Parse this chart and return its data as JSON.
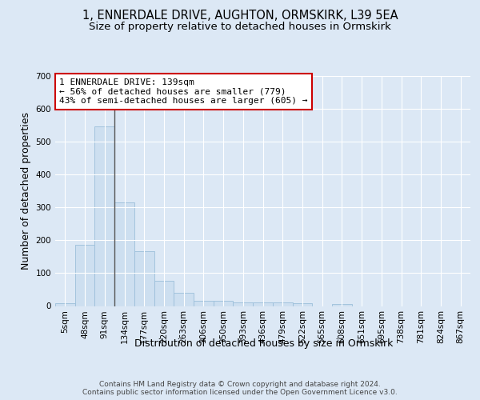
{
  "title_line1": "1, ENNERDALE DRIVE, AUGHTON, ORMSKIRK, L39 5EA",
  "title_line2": "Size of property relative to detached houses in Ormskirk",
  "xlabel": "Distribution of detached houses by size in Ormskirk",
  "ylabel": "Number of detached properties",
  "footnote": "Contains HM Land Registry data © Crown copyright and database right 2024.\nContains public sector information licensed under the Open Government Licence v3.0.",
  "bin_labels": [
    "5sqm",
    "48sqm",
    "91sqm",
    "134sqm",
    "177sqm",
    "220sqm",
    "263sqm",
    "306sqm",
    "350sqm",
    "393sqm",
    "436sqm",
    "479sqm",
    "522sqm",
    "565sqm",
    "608sqm",
    "651sqm",
    "695sqm",
    "738sqm",
    "781sqm",
    "824sqm",
    "867sqm"
  ],
  "bar_values": [
    8,
    186,
    547,
    315,
    168,
    77,
    40,
    16,
    16,
    11,
    12,
    12,
    8,
    0,
    7,
    0,
    0,
    0,
    0,
    0,
    0
  ],
  "bar_color": "#cddff0",
  "bar_edgecolor": "#9bbfda",
  "vline_x": 3.0,
  "vline_color": "#555555",
  "annotation_text": "1 ENNERDALE DRIVE: 139sqm\n← 56% of detached houses are smaller (779)\n43% of semi-detached houses are larger (605) →",
  "annotation_box_color": "#ffffff",
  "annotation_box_edgecolor": "#cc0000",
  "ylim": [
    0,
    700
  ],
  "yticks": [
    0,
    100,
    200,
    300,
    400,
    500,
    600,
    700
  ],
  "background_color": "#dce8f5",
  "grid_color": "#ffffff",
  "title_fontsize": 10.5,
  "subtitle_fontsize": 9.5,
  "axis_label_fontsize": 9,
  "tick_fontsize": 7.5,
  "annotation_fontsize": 8,
  "footnote_fontsize": 6.5
}
